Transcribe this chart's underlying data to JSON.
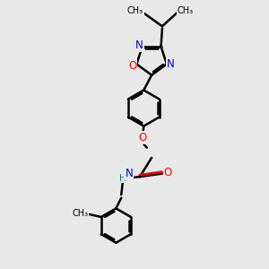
{
  "bg_color": "#e8e8e8",
  "bond_color": "#000000",
  "N_color": "#0000cd",
  "O_color": "#ff0000",
  "NH_color": "#008080",
  "bond_width": 1.8,
  "figsize": [
    3.0,
    3.0
  ],
  "dpi": 100,
  "xlim": [
    0,
    10
  ],
  "ylim": [
    0,
    10
  ]
}
